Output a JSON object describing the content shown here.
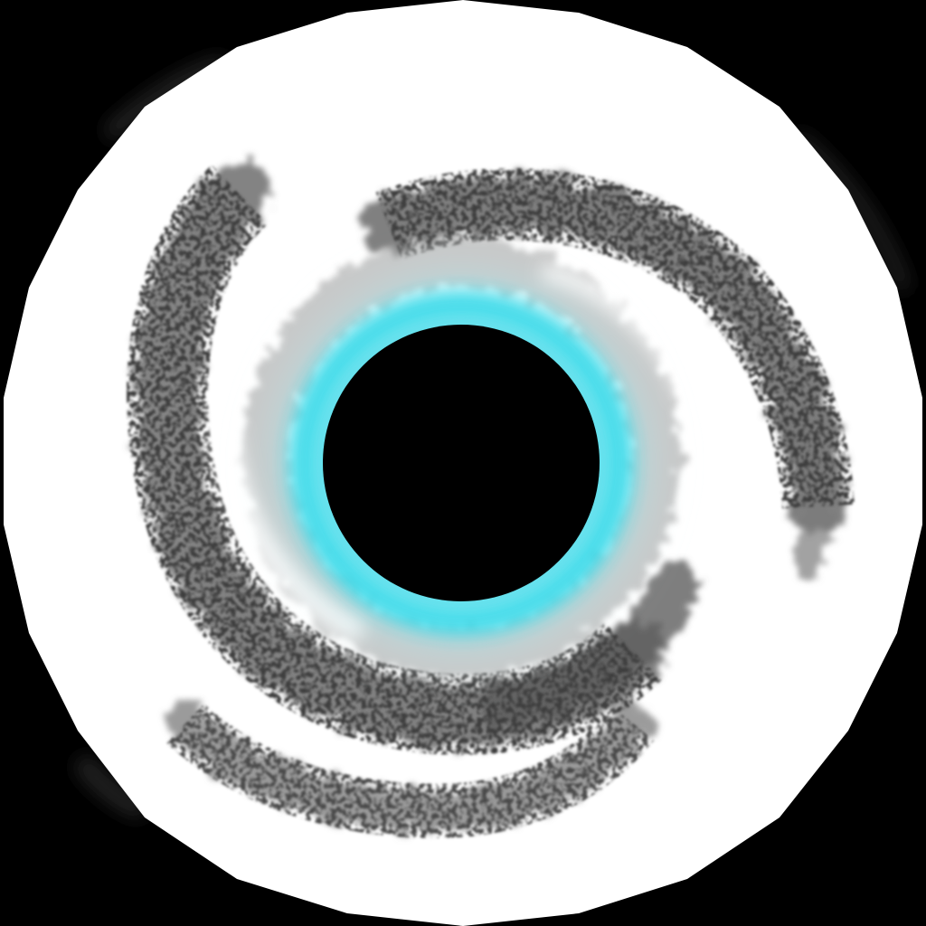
{
  "scene": {
    "subject": "spiral-vortex",
    "colors": {
      "background": "#000000",
      "disc": "#ffffff",
      "arm_smoke": "#6e6e6e",
      "inner_glow": "#2fd8e8",
      "core": "#000000"
    },
    "arm_count": 2
  }
}
